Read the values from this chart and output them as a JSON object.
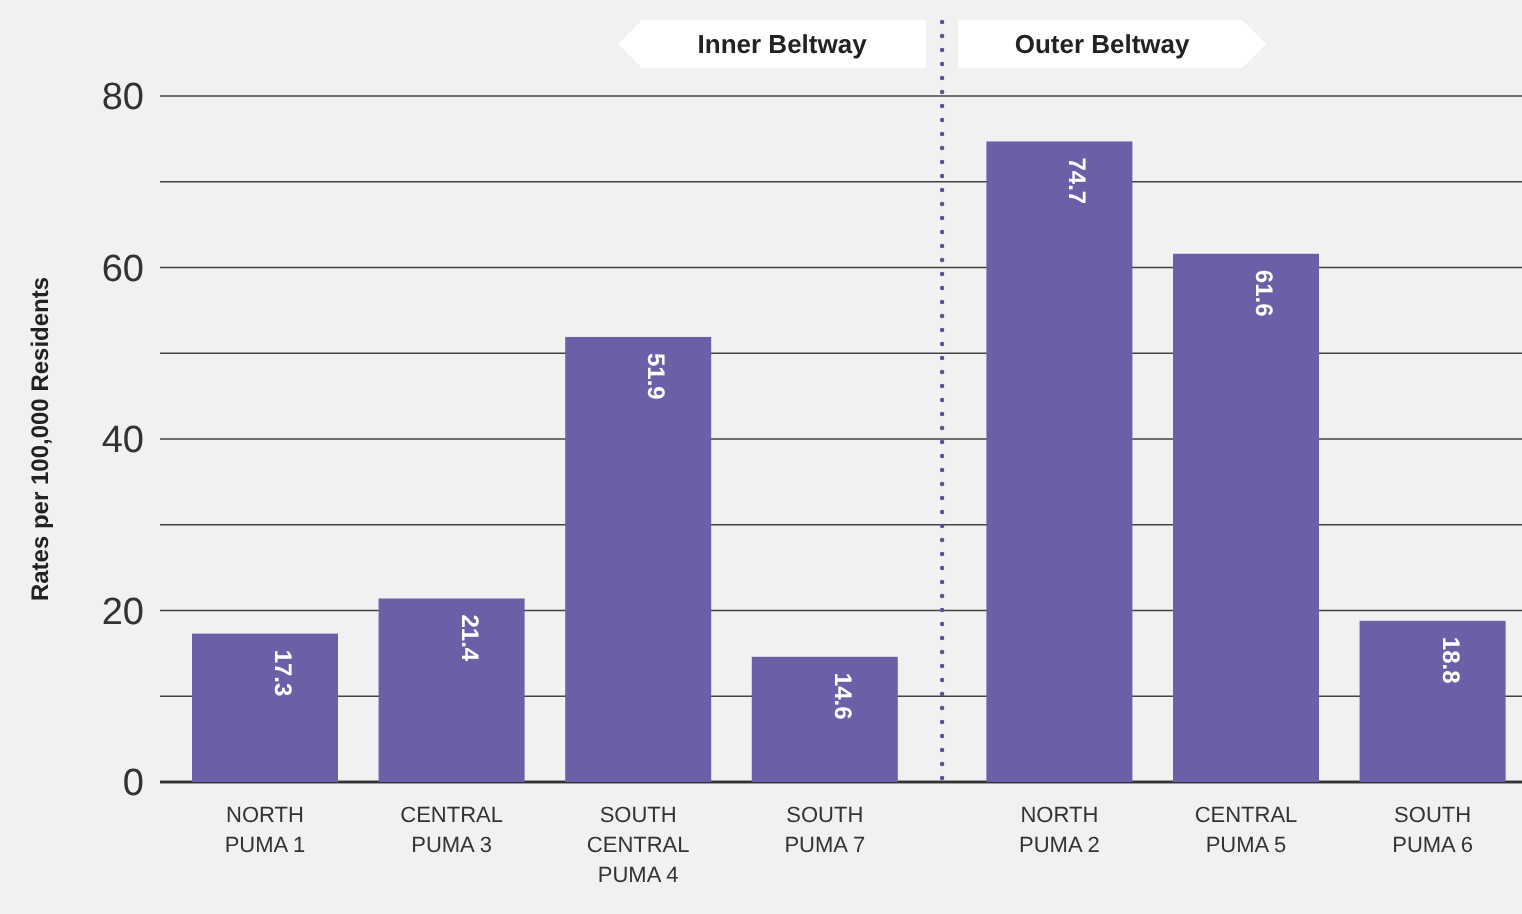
{
  "chart_data": {
    "type": "bar",
    "ylabel": "Rates per 100,000 Residents",
    "categories": [
      "NORTH\nPUMA 1",
      "CENTRAL\nPUMA 3",
      "SOUTH\nCENTRAL\nPUMA 4",
      "SOUTH\nPUMA 7",
      "NORTH\nPUMA 2",
      "CENTRAL\nPUMA 5",
      "SOUTH\nPUMA 6"
    ],
    "values": [
      17.3,
      21.4,
      51.9,
      14.6,
      74.7,
      61.6,
      18.8
    ],
    "color": "#6c5fa7",
    "ylim": [
      0,
      80
    ],
    "yticks": [
      0,
      {
        "value": 10,
        "label": null
      },
      20,
      {
        "value": 30,
        "label": null
      },
      40,
      {
        "value": 50,
        "label": null
      },
      60,
      {
        "value": 70,
        "label": null
      },
      80
    ],
    "grid": "y",
    "data_labels": true,
    "annotations": [
      "Inner Beltway",
      "Outer Beltway"
    ]
  }
}
